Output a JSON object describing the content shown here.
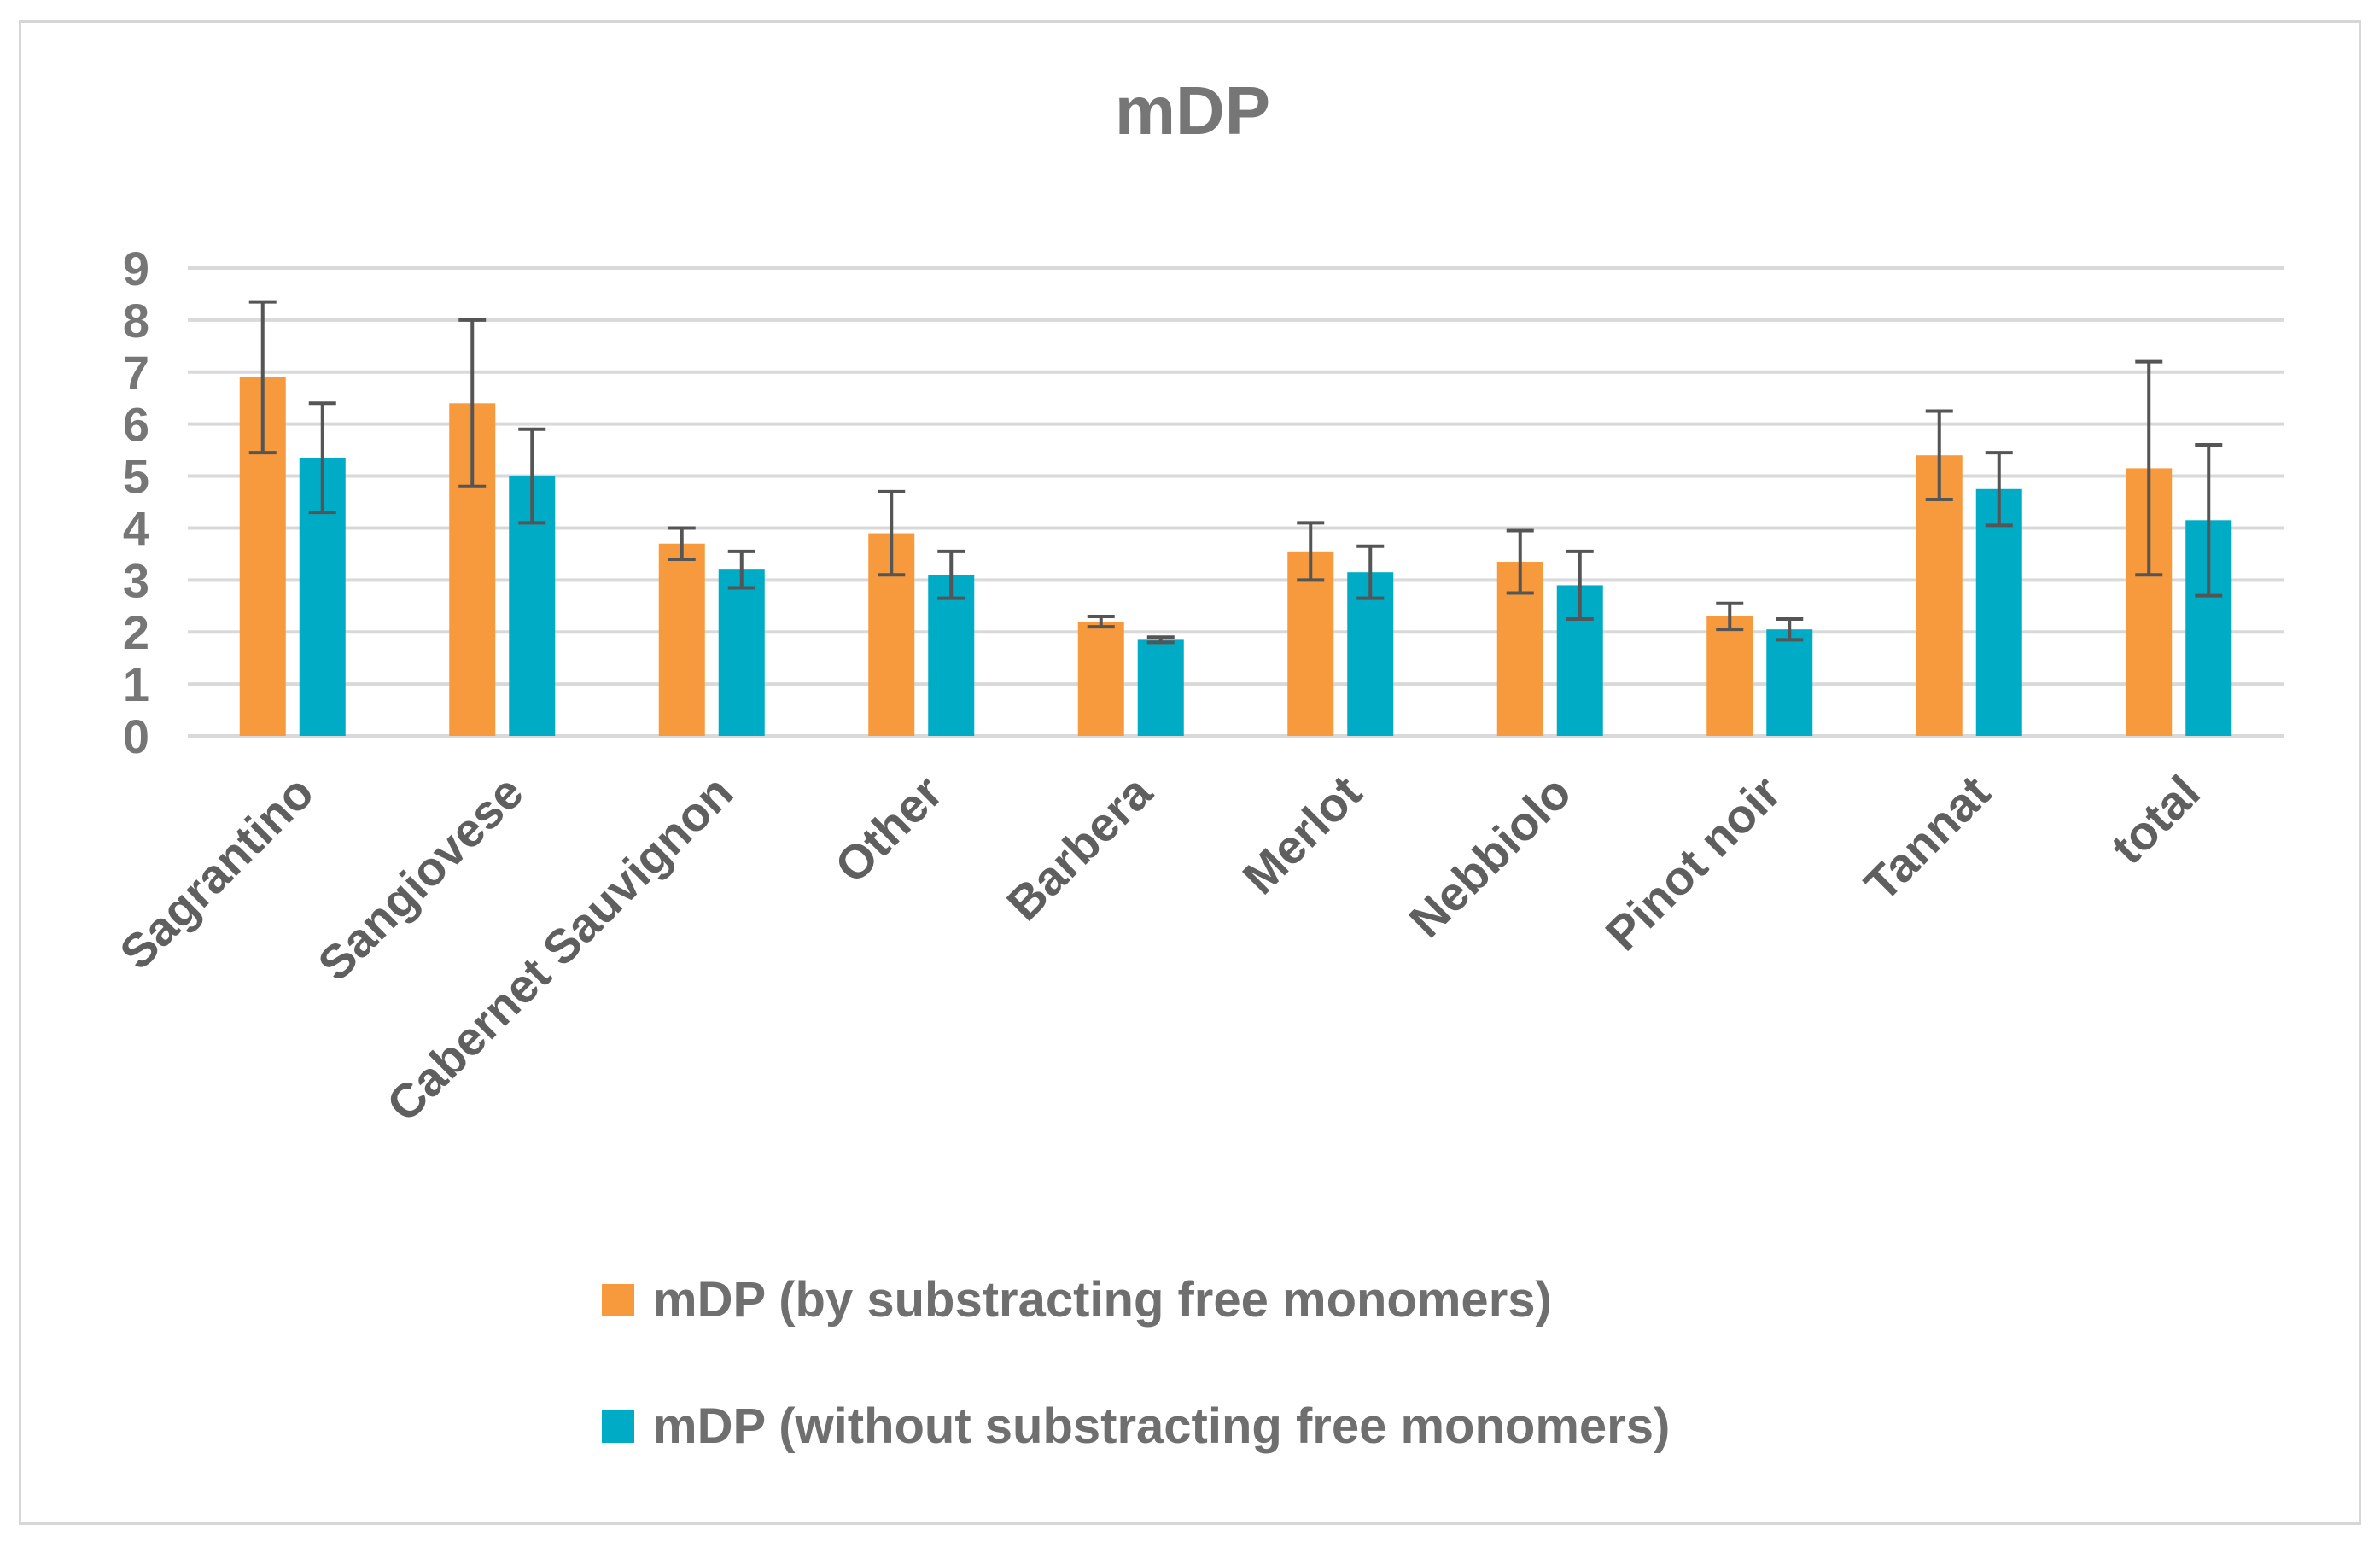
{
  "chart_data": {
    "type": "bar",
    "title": "mDP",
    "xlabel": "",
    "ylabel": "",
    "ylim": [
      0,
      9
    ],
    "yticks": [
      0,
      1,
      2,
      3,
      4,
      5,
      6,
      7,
      8,
      9
    ],
    "grid": true,
    "legend_position": "bottom",
    "categories": [
      "Sagrantino",
      "Sangiovese",
      "Cabernet Sauvignon",
      "Other",
      "Barbera",
      "Merlot",
      "Nebbiolo",
      "Pinot noir",
      "Tannat",
      "total"
    ],
    "series": [
      {
        "name": "mDP (by substracting free monomers)",
        "color": "#f79a3e",
        "values": [
          6.9,
          6.4,
          3.7,
          3.9,
          2.2,
          3.55,
          3.35,
          2.3,
          5.4,
          5.15
        ],
        "errors": [
          1.45,
          1.6,
          0.3,
          0.8,
          0.1,
          0.55,
          0.6,
          0.25,
          0.85,
          2.05
        ]
      },
      {
        "name": "mDP (without substracting free monomers)",
        "color": "#00abc5",
        "values": [
          5.35,
          5.0,
          3.2,
          3.1,
          1.85,
          3.15,
          2.9,
          2.05,
          4.75,
          4.15
        ],
        "errors": [
          1.05,
          0.9,
          0.35,
          0.45,
          0.05,
          0.5,
          0.65,
          0.2,
          0.7,
          1.45
        ]
      }
    ]
  }
}
